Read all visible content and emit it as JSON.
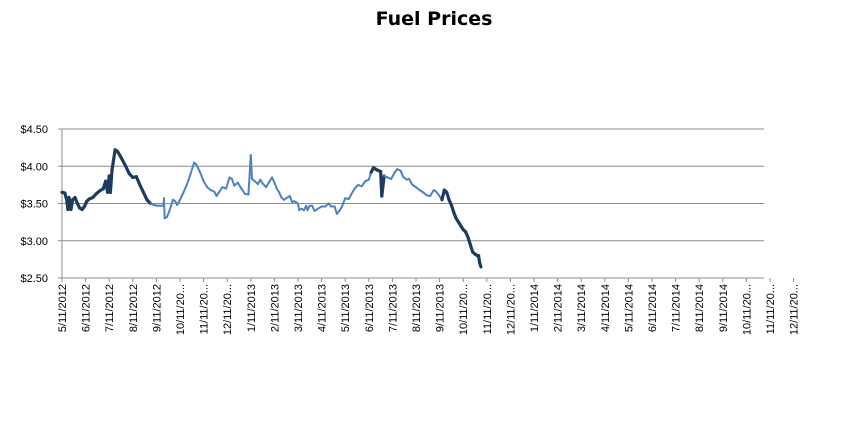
{
  "chart_data": {
    "type": "line",
    "title": "Fuel Prices",
    "xlabel": "",
    "ylabel": "",
    "ylim": [
      2.5,
      4.5
    ],
    "y_ticks": [
      "$4.50",
      "$4.00",
      "$3.50",
      "$3.00",
      "$2.50"
    ],
    "y_tick_values": [
      4.5,
      4.0,
      3.5,
      3.0,
      2.5
    ],
    "x_ticks": [
      "5/11/2012",
      "6/11/2012",
      "7/11/2012",
      "8/11/2012",
      "9/11/2012",
      "10/11/20...",
      "11/11/20...",
      "12/11/20...",
      "1/11/2013",
      "2/11/2013",
      "3/11/2013",
      "4/11/2013",
      "5/11/2013",
      "6/11/2013",
      "7/11/2013",
      "8/11/2013",
      "9/11/2013",
      "10/11/20...",
      "11/11/20...",
      "12/11/20...",
      "1/11/2014",
      "2/11/2014",
      "3/11/2014",
      "4/11/2014",
      "5/11/2014",
      "6/11/2014",
      "7/11/2014",
      "8/11/2014",
      "9/11/2014",
      "10/11/20...",
      "11/11/20...",
      "12/11/20..."
    ],
    "grid": true,
    "line_color": "#4f81bd",
    "line_color_dark": "#1f3b5c",
    "series": [
      {
        "values": [
          [
            0.0,
            3.65
          ],
          [
            0.12,
            3.64
          ],
          [
            0.2,
            3.55
          ],
          [
            0.25,
            3.42
          ],
          [
            0.3,
            3.58
          ],
          [
            0.38,
            3.42
          ],
          [
            0.45,
            3.55
          ],
          [
            0.55,
            3.58
          ],
          [
            0.65,
            3.5
          ],
          [
            0.75,
            3.44
          ],
          [
            0.85,
            3.42
          ],
          [
            0.95,
            3.46
          ],
          [
            1.05,
            3.53
          ],
          [
            1.15,
            3.56
          ],
          [
            1.3,
            3.58
          ],
          [
            1.45,
            3.63
          ],
          [
            1.6,
            3.67
          ],
          [
            1.75,
            3.7
          ],
          [
            1.85,
            3.8
          ],
          [
            1.93,
            3.65
          ],
          [
            2.0,
            3.87
          ],
          [
            2.05,
            3.65
          ],
          [
            2.12,
            3.95
          ],
          [
            2.25,
            4.22
          ],
          [
            2.35,
            4.2
          ],
          [
            2.5,
            4.12
          ],
          [
            2.7,
            4.0
          ],
          [
            2.85,
            3.9
          ],
          [
            3.0,
            3.85
          ],
          [
            3.15,
            3.86
          ],
          [
            3.3,
            3.75
          ],
          [
            3.45,
            3.65
          ],
          [
            3.6,
            3.55
          ],
          [
            3.75,
            3.5
          ],
          [
            3.9,
            3.48
          ],
          [
            4.05,
            3.47
          ],
          [
            4.2,
            3.47
          ],
          [
            4.3,
            3.47
          ],
          [
            4.32,
            3.57
          ],
          [
            4.35,
            3.3
          ],
          [
            4.45,
            3.32
          ],
          [
            4.55,
            3.4
          ],
          [
            4.7,
            3.55
          ],
          [
            4.8,
            3.53
          ],
          [
            4.88,
            3.48
          ],
          [
            5.0,
            3.55
          ],
          [
            5.15,
            3.65
          ],
          [
            5.3,
            3.76
          ],
          [
            5.45,
            3.9
          ],
          [
            5.6,
            4.05
          ],
          [
            5.7,
            4.02
          ],
          [
            5.85,
            3.92
          ],
          [
            6.0,
            3.8
          ],
          [
            6.15,
            3.72
          ],
          [
            6.3,
            3.68
          ],
          [
            6.45,
            3.66
          ],
          [
            6.55,
            3.6
          ],
          [
            6.65,
            3.65
          ],
          [
            6.8,
            3.72
          ],
          [
            6.95,
            3.7
          ],
          [
            7.1,
            3.85
          ],
          [
            7.2,
            3.83
          ],
          [
            7.3,
            3.74
          ],
          [
            7.45,
            3.78
          ],
          [
            7.6,
            3.7
          ],
          [
            7.75,
            3.63
          ],
          [
            7.9,
            3.62
          ],
          [
            8.0,
            4.15
          ],
          [
            8.05,
            3.83
          ],
          [
            8.2,
            3.79
          ],
          [
            8.3,
            3.76
          ],
          [
            8.4,
            3.82
          ],
          [
            8.5,
            3.77
          ],
          [
            8.65,
            3.72
          ],
          [
            8.8,
            3.8
          ],
          [
            8.9,
            3.85
          ],
          [
            9.0,
            3.78
          ],
          [
            9.1,
            3.7
          ],
          [
            9.2,
            3.65
          ],
          [
            9.3,
            3.58
          ],
          [
            9.4,
            3.55
          ],
          [
            9.55,
            3.58
          ],
          [
            9.65,
            3.6
          ],
          [
            9.75,
            3.52
          ],
          [
            9.85,
            3.53
          ],
          [
            10.0,
            3.5
          ],
          [
            10.05,
            3.41
          ],
          [
            10.15,
            3.43
          ],
          [
            10.25,
            3.41
          ],
          [
            10.35,
            3.47
          ],
          [
            10.4,
            3.41
          ],
          [
            10.5,
            3.47
          ],
          [
            10.6,
            3.47
          ],
          [
            10.7,
            3.4
          ],
          [
            10.85,
            3.43
          ],
          [
            11.0,
            3.46
          ],
          [
            11.15,
            3.46
          ],
          [
            11.3,
            3.5
          ],
          [
            11.4,
            3.46
          ],
          [
            11.55,
            3.46
          ],
          [
            11.65,
            3.36
          ],
          [
            11.75,
            3.4
          ],
          [
            11.85,
            3.45
          ],
          [
            12.0,
            3.57
          ],
          [
            12.15,
            3.56
          ],
          [
            12.25,
            3.62
          ],
          [
            12.4,
            3.7
          ],
          [
            12.55,
            3.75
          ],
          [
            12.7,
            3.73
          ],
          [
            12.85,
            3.8
          ],
          [
            13.0,
            3.82
          ],
          [
            13.1,
            3.92
          ],
          [
            13.2,
            3.98
          ],
          [
            13.35,
            3.95
          ],
          [
            13.5,
            3.93
          ],
          [
            13.55,
            3.6
          ],
          [
            13.65,
            3.87
          ],
          [
            13.8,
            3.85
          ],
          [
            13.95,
            3.83
          ],
          [
            14.1,
            3.92
          ],
          [
            14.2,
            3.96
          ],
          [
            14.35,
            3.94
          ],
          [
            14.45,
            3.86
          ],
          [
            14.6,
            3.82
          ],
          [
            14.7,
            3.83
          ],
          [
            14.85,
            3.75
          ],
          [
            15.0,
            3.72
          ],
          [
            15.15,
            3.68
          ],
          [
            15.3,
            3.65
          ],
          [
            15.45,
            3.61
          ],
          [
            15.6,
            3.6
          ],
          [
            15.75,
            3.68
          ],
          [
            15.85,
            3.66
          ],
          [
            15.95,
            3.62
          ],
          [
            16.1,
            3.55
          ],
          [
            16.2,
            3.68
          ],
          [
            16.3,
            3.65
          ],
          [
            16.4,
            3.55
          ],
          [
            16.5,
            3.48
          ],
          [
            16.6,
            3.38
          ],
          [
            16.7,
            3.3
          ],
          [
            16.8,
            3.25
          ],
          [
            16.9,
            3.2
          ],
          [
            17.0,
            3.15
          ],
          [
            17.1,
            3.12
          ],
          [
            17.2,
            3.05
          ],
          [
            17.3,
            2.95
          ],
          [
            17.4,
            2.85
          ],
          [
            17.5,
            2.82
          ],
          [
            17.6,
            2.8
          ],
          [
            17.65,
            2.8
          ],
          [
            17.7,
            2.7
          ],
          [
            17.75,
            2.65
          ]
        ]
      }
    ]
  }
}
